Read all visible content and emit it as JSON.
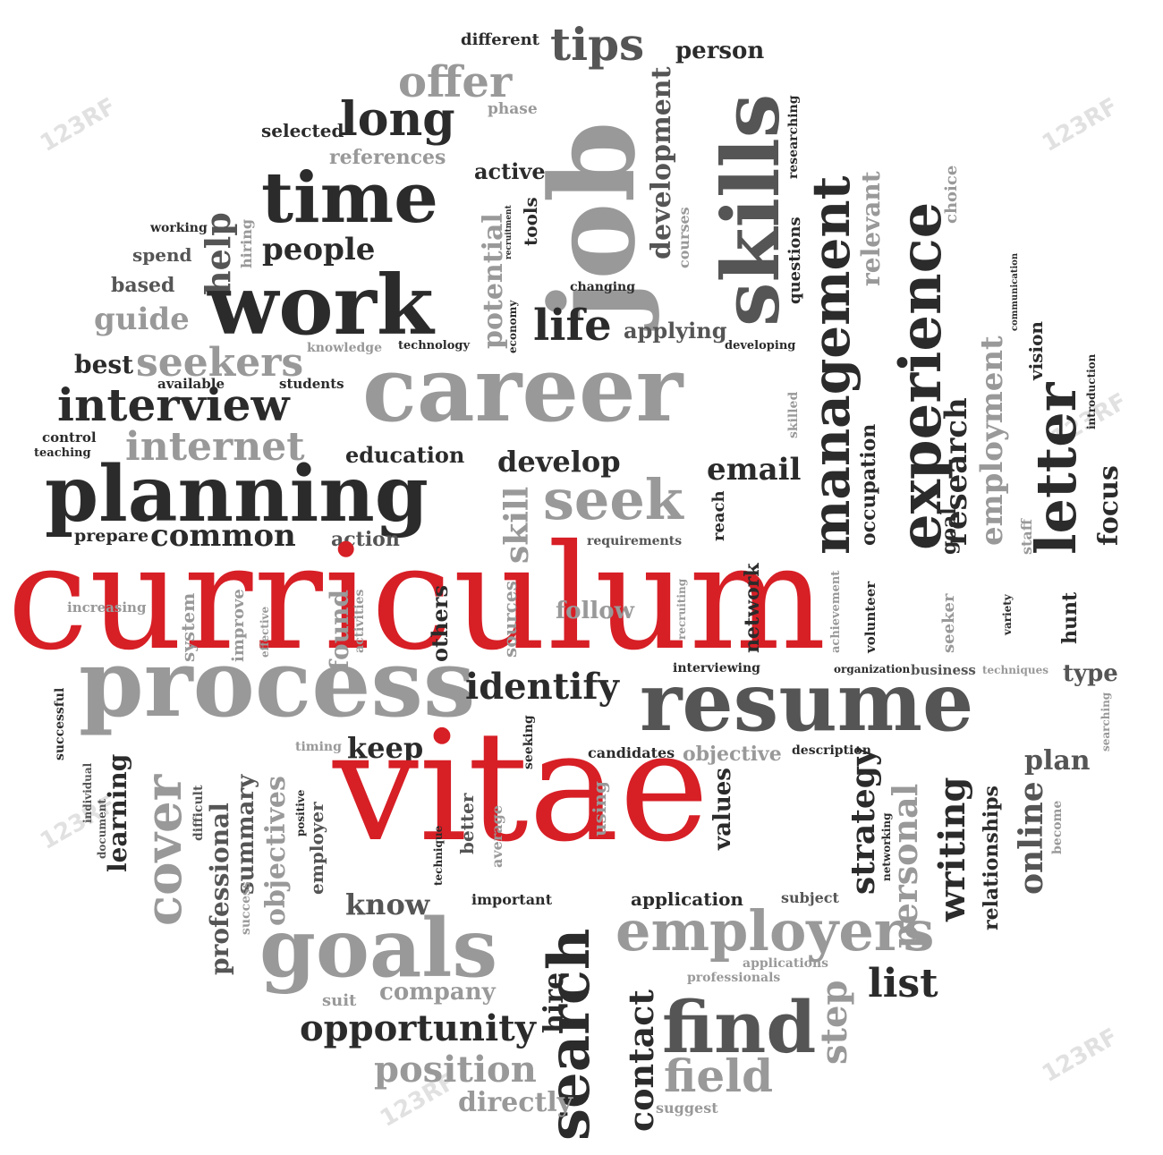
{
  "cloud": {
    "curriculum": "curriculum",
    "vitae": "vitae",
    "career": "career",
    "resume": "resume",
    "process": "process",
    "planning": "planning",
    "work": "work",
    "time": "time",
    "job": "job",
    "skills": "skills",
    "goals": "goals",
    "employers": "employers",
    "find": "find",
    "search": "search",
    "cover": "cover",
    "management": "management",
    "experience": "experience",
    "letter": "letter",
    "interview": "interview",
    "offer": "offer",
    "tips": "tips",
    "long": "long",
    "seek": "seek",
    "identify": "identify",
    "opportunity": "opportunity",
    "position": "position",
    "field": "field",
    "contact": "contact",
    "professional": "professional",
    "objectives": "objectives",
    "learning": "learning",
    "writing": "writing",
    "online": "online",
    "personal": "personal",
    "employment": "employment",
    "strategy": "strategy",
    "development": "development",
    "potential": "potential",
    "research": "research",
    "relevant": "relevant",
    "occupation": "occupation",
    "focus": "focus",
    "internet": "internet",
    "common": "common",
    "seekers": "seekers",
    "develop": "develop",
    "email": "email",
    "life": "life",
    "people": "people",
    "help": "help",
    "guide": "guide",
    "best": "best",
    "education": "education",
    "know": "know",
    "keep": "keep",
    "list": "list",
    "plan": "plan",
    "type": "type",
    "company": "company",
    "directly": "directly",
    "application": "application",
    "important": "important",
    "candidates": "candidates",
    "objective": "objective",
    "follow": "follow",
    "skill": "skill",
    "active": "active",
    "references": "references",
    "selected": "selected",
    "different": "different",
    "person": "person",
    "phase": "phase",
    "working": "working",
    "spend": "spend",
    "based": "based",
    "hiring": "hiring",
    "tools": "tools",
    "recruitment": "recruitment",
    "economy": "economy",
    "changing": "changing",
    "applying": "applying",
    "courses": "courses",
    "questions": "questions",
    "researching": "researching",
    "choice": "choice",
    "communication": "communication",
    "knowledge": "knowledge",
    "technology": "technology",
    "developing": "developing",
    "vision": "vision",
    "introduction": "introduction",
    "available": "available",
    "students": "students",
    "control": "control",
    "teaching": "teaching",
    "skilled": "skilled",
    "reach": "reach",
    "goal": "goal",
    "staff": "staff",
    "prepare": "prepare",
    "action": "action",
    "requirements": "requirements",
    "network": "network",
    "increasing": "increasing",
    "system": "system",
    "improve": "improve",
    "effective": "effective",
    "found": "found",
    "activities": "activities",
    "others": "others",
    "sources": "sources",
    "recruiting": "recruiting",
    "achievement": "achievement",
    "volunteer": "volunteer",
    "seeker": "seeker",
    "variety": "variety",
    "hunt": "hunt",
    "interviewing": "interviewing",
    "organization": "organization",
    "business": "business",
    "techniques": "techniques",
    "successful": "successful",
    "searching": "searching",
    "timing": "timing",
    "description": "description",
    "seeking": "seeking",
    "individual": "individual",
    "document": "document",
    "difficult": "difficult",
    "summary": "summary",
    "success": "success",
    "positive": "positive",
    "employer": "employer",
    "technique": "technique",
    "better": "better",
    "average": "average",
    "using": "using",
    "values": "values",
    "networking": "networking",
    "relationships": "relationships",
    "become": "become",
    "subject": "subject",
    "step": "step",
    "applications": "applications",
    "professionals": "professionals",
    "suit": "suit",
    "hire": "hire",
    "suggest": "suggest"
  },
  "watermark": {
    "text": "123RF"
  }
}
